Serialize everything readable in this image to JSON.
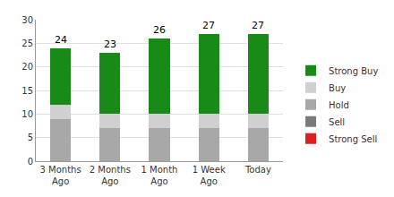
{
  "chart_data": {
    "type": "bar",
    "categories": [
      "3 Months Ago",
      "2 Months Ago",
      "1 Month Ago",
      "1 Week Ago",
      "Today"
    ],
    "series": [
      {
        "name": "Strong Sell",
        "color": "#dd1f1f",
        "values": [
          0,
          0,
          0,
          0,
          0
        ]
      },
      {
        "name": "Sell",
        "color": "#7a7a7a",
        "values": [
          0,
          0,
          0,
          0,
          0
        ]
      },
      {
        "name": "Hold",
        "color": "#a8a8a8",
        "values": [
          9,
          7,
          7,
          7,
          7
        ]
      },
      {
        "name": "Buy",
        "color": "#d0d0d0",
        "values": [
          3,
          3,
          3,
          3,
          3
        ]
      },
      {
        "name": "Strong Buy",
        "color": "#188a18",
        "values": [
          12,
          13,
          16,
          17,
          17
        ]
      }
    ],
    "totals": [
      24,
      23,
      26,
      27,
      27
    ],
    "ylim": [
      0,
      30
    ],
    "yticks": [
      0,
      5,
      10,
      15,
      20,
      25,
      30
    ],
    "grid": true,
    "stacked": true,
    "legend": "right"
  }
}
